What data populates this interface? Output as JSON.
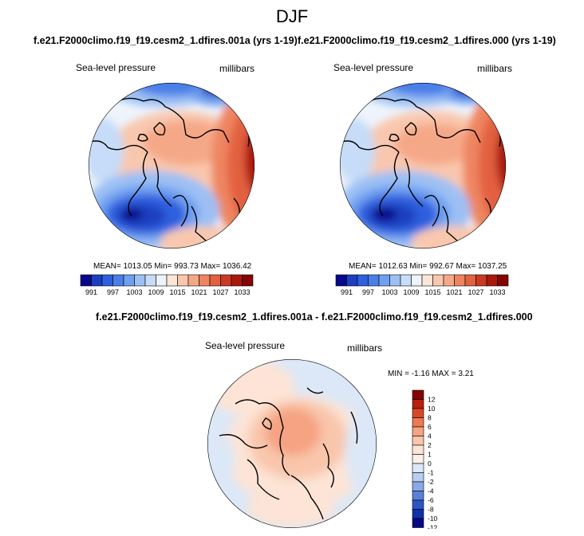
{
  "chart_data": {
    "type": "heatmap",
    "title": "DJF",
    "panels": [
      {
        "title": "f.e21.F2000climo.f19_f19.cesm2_1.dfires.001a (yrs 1-19)",
        "variable": "Sea-level pressure",
        "units": "millibars",
        "projection": "north polar stereographic",
        "stats": {
          "mean": 1013.05,
          "min": 993.73,
          "max": 1036.42
        },
        "stats_text": "MEAN= 1013.05  Min= 993.73  Max= 1036.42",
        "colorbar_levels": [
          991,
          994,
          997,
          1000,
          1003,
          1006,
          1009,
          1012,
          1015,
          1018,
          1021,
          1024,
          1027,
          1030,
          1033
        ],
        "colorbar_labels": [
          "991",
          "997",
          "1003",
          "1009",
          "1015",
          "1021",
          "1027",
          "1033"
        ]
      },
      {
        "title": "f.e21.F2000climo.f19_f19.cesm2_1.dfires.000 (yrs 1-19)",
        "variable": "Sea-level pressure",
        "units": "millibars",
        "projection": "north polar stereographic",
        "stats": {
          "mean": 1012.63,
          "min": 992.67,
          "max": 1037.25
        },
        "stats_text": "MEAN= 1012.63  Min= 992.67  Max= 1037.25",
        "colorbar_levels": [
          991,
          994,
          997,
          1000,
          1003,
          1006,
          1009,
          1012,
          1015,
          1018,
          1021,
          1024,
          1027,
          1030,
          1033
        ],
        "colorbar_labels": [
          "991",
          "997",
          "1003",
          "1009",
          "1015",
          "1021",
          "1027",
          "1033"
        ]
      },
      {
        "title": "f.e21.F2000climo.f19_f19.cesm2_1.dfires.001a - f.e21.F2000climo.f19_f19.cesm2_1.dfires.000",
        "variable": "Sea-level pressure",
        "units": "millibars",
        "projection": "north polar stereographic",
        "stats": {
          "min": -1.16,
          "max": 3.21
        },
        "stats_text": "MIN =  -1.16 MAX =   3.21",
        "colorbar_levels": [
          -12,
          -10,
          -8,
          -6,
          -4,
          -2,
          -1,
          0,
          1,
          2,
          4,
          6,
          8,
          10,
          12
        ],
        "colorbar_labels": [
          "12",
          "10",
          "8",
          "6",
          "4",
          "2",
          "1",
          "0",
          "-1",
          "-2",
          "-4",
          "-6",
          "-8",
          "-10",
          "-12"
        ]
      }
    ]
  },
  "colors": {
    "abs_scale": [
      "#08088c",
      "#1c3fc0",
      "#2f5fdd",
      "#4a7fe8",
      "#6f9ff0",
      "#9cc0f4",
      "#c6dcf8",
      "#eef4fb",
      "#fde6d8",
      "#f9c7ae",
      "#f5a888",
      "#ee8560",
      "#e2613f",
      "#c93a22",
      "#a9190c",
      "#850404"
    ],
    "diff_scale": [
      "#850404",
      "#b8200f",
      "#d84828",
      "#ec7a52",
      "#f5a382",
      "#f9c6ac",
      "#fde4d6",
      "#fdf0e8",
      "#dce8f7",
      "#b8cef0",
      "#8aaae6",
      "#5a80d8",
      "#2c56c4",
      "#1030a8",
      "#080884"
    ]
  }
}
